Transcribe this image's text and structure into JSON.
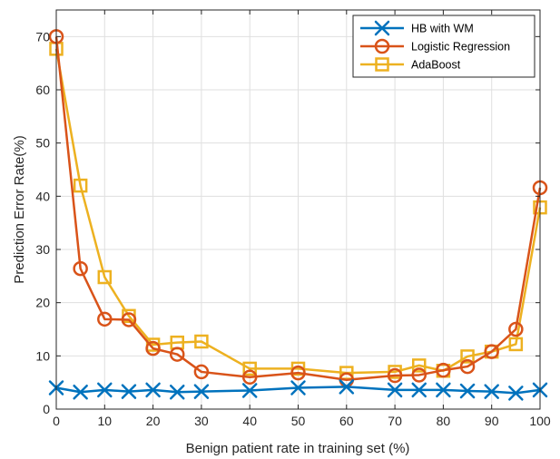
{
  "chart_data": {
    "type": "line",
    "title": "",
    "xlabel": "Benign patient rate in training set (%)",
    "ylabel": "Prediction Error Rate(%)",
    "xlim": [
      0,
      100
    ],
    "ylim": [
      0,
      75
    ],
    "xticks": [
      "0",
      "10",
      "20",
      "30",
      "40",
      "50",
      "60",
      "70",
      "80",
      "90",
      "100"
    ],
    "yticks": [
      "0",
      "10",
      "20",
      "30",
      "40",
      "50",
      "60",
      "70"
    ],
    "grid": true,
    "legend_position": "top-right",
    "x": [
      0,
      5,
      10,
      15,
      20,
      25,
      30,
      40,
      50,
      60,
      70,
      75,
      80,
      85,
      90,
      95,
      100
    ],
    "series": [
      {
        "name": "HB with WM",
        "color": "#0072BD",
        "marker": "x",
        "values": [
          4.0,
          3.2,
          3.6,
          3.3,
          3.6,
          3.2,
          3.3,
          3.5,
          4.0,
          4.2,
          3.6,
          3.6,
          3.6,
          3.4,
          3.3,
          3.0,
          3.6
        ]
      },
      {
        "name": "Logistic Regression",
        "color": "#D95319",
        "marker": "circle",
        "values": [
          70.0,
          26.4,
          16.9,
          16.8,
          11.4,
          10.3,
          7.0,
          6.0,
          6.8,
          5.5,
          6.3,
          6.4,
          7.3,
          8.0,
          10.8,
          15.0,
          41.6
        ]
      },
      {
        "name": "AdaBoost",
        "color": "#EDB120",
        "marker": "square",
        "values": [
          67.7,
          42.0,
          24.8,
          17.5,
          12.1,
          12.5,
          12.7,
          7.6,
          7.6,
          6.8,
          7.0,
          8.2,
          7.2,
          9.9,
          10.8,
          12.2,
          37.9
        ]
      }
    ]
  }
}
